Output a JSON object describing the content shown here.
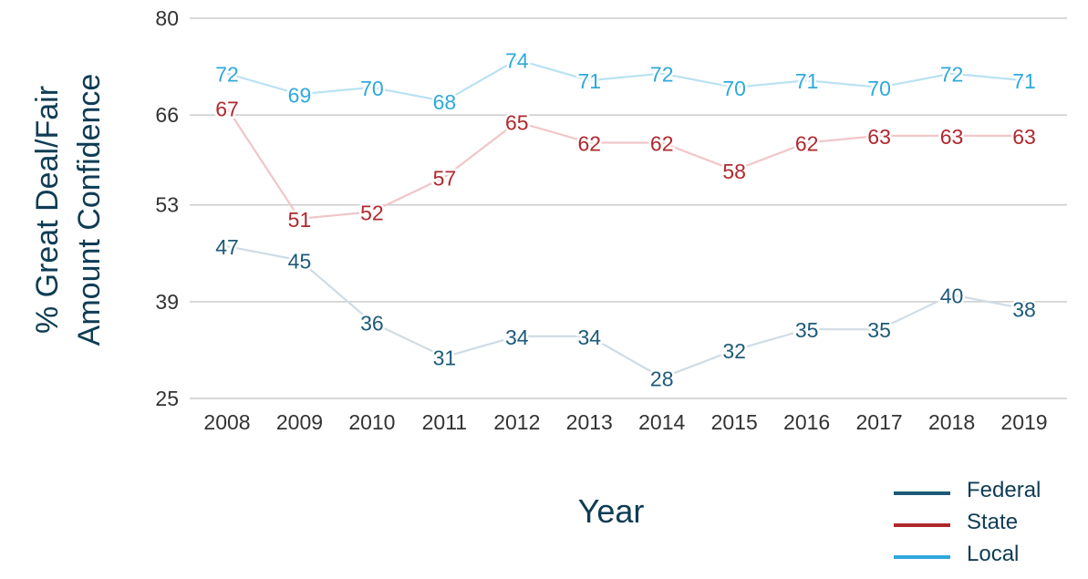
{
  "colors": {
    "federal": "#1d5a78",
    "state": "#b0282e",
    "local": "#2fa9dc",
    "federal_line": "#cfdce5",
    "state_line": "#f1c6c8",
    "local_line": "#b9e2f3",
    "grid": "#cccccc",
    "axis_text": "#333333",
    "title_text": "#0f3c54"
  },
  "chart_data": {
    "type": "line",
    "xlabel": "Year",
    "ylabel_line1": "% Great Deal/Fair",
    "ylabel_line2": "Amount Confidence",
    "ylim": [
      25,
      80
    ],
    "yticks": [
      "25",
      "39",
      "53",
      "66",
      "80"
    ],
    "categories": [
      "2008",
      "2009",
      "2010",
      "2011",
      "2012",
      "2013",
      "2014",
      "2015",
      "2016",
      "2017",
      "2018",
      "2019"
    ],
    "grid": true,
    "legend_position": "bottom-right",
    "series": [
      {
        "name": "Federal",
        "key": "federal",
        "values": [
          47,
          45,
          36,
          31,
          34,
          34,
          28,
          32,
          35,
          35,
          40,
          38
        ]
      },
      {
        "name": "State",
        "key": "state",
        "values": [
          67,
          51,
          52,
          57,
          65,
          62,
          62,
          58,
          62,
          63,
          63,
          63
        ]
      },
      {
        "name": "Local",
        "key": "local",
        "values": [
          72,
          69,
          70,
          68,
          74,
          71,
          72,
          70,
          71,
          70,
          72,
          71
        ]
      }
    ]
  }
}
